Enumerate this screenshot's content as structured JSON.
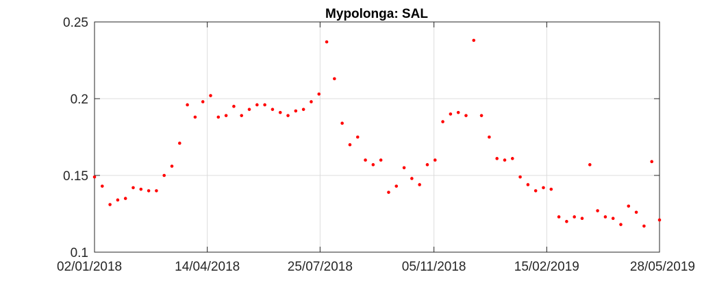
{
  "chart_data": {
    "type": "scatter",
    "title": "Mypolonga: SAL",
    "xlabel": "",
    "ylabel": "",
    "x_axis": "date",
    "xlim": [
      "2018-01-02",
      "2019-05-28"
    ],
    "ylim": [
      0.1,
      0.25
    ],
    "xticks": [
      "2018-01-02",
      "2018-04-14",
      "2018-07-25",
      "2018-11-05",
      "2019-02-15",
      "2019-05-28"
    ],
    "xtick_labels": [
      "02/01/2018",
      "14/04/2018",
      "25/07/2018",
      "05/11/2018",
      "15/02/2019",
      "28/05/2019"
    ],
    "yticks": [
      0.1,
      0.15,
      0.2,
      0.25
    ],
    "ytick_labels": [
      "0.1",
      "0.15",
      "0.2",
      "0.25"
    ],
    "grid": true,
    "marker_color": "#ff0000",
    "series": [
      {
        "points": [
          [
            "2018-01-02",
            0.149
          ],
          [
            "2018-01-09",
            0.143
          ],
          [
            "2018-01-16",
            0.131
          ],
          [
            "2018-01-23",
            0.134
          ],
          [
            "2018-01-30",
            0.135
          ],
          [
            "2018-02-06",
            0.142
          ],
          [
            "2018-02-13",
            0.141
          ],
          [
            "2018-02-20",
            0.14
          ],
          [
            "2018-02-27",
            0.14
          ],
          [
            "2018-03-06",
            0.15
          ],
          [
            "2018-03-13",
            0.156
          ],
          [
            "2018-03-20",
            0.171
          ],
          [
            "2018-03-27",
            0.196
          ],
          [
            "2018-04-03",
            0.188
          ],
          [
            "2018-04-10",
            0.198
          ],
          [
            "2018-04-17",
            0.202
          ],
          [
            "2018-04-24",
            0.188
          ],
          [
            "2018-05-01",
            0.189
          ],
          [
            "2018-05-08",
            0.195
          ],
          [
            "2018-05-15",
            0.189
          ],
          [
            "2018-05-22",
            0.193
          ],
          [
            "2018-05-29",
            0.196
          ],
          [
            "2018-06-05",
            0.196
          ],
          [
            "2018-06-12",
            0.193
          ],
          [
            "2018-06-19",
            0.191
          ],
          [
            "2018-06-26",
            0.189
          ],
          [
            "2018-07-03",
            0.192
          ],
          [
            "2018-07-10",
            0.193
          ],
          [
            "2018-07-17",
            0.198
          ],
          [
            "2018-07-24",
            0.203
          ],
          [
            "2018-07-31",
            0.237
          ],
          [
            "2018-08-07",
            0.213
          ],
          [
            "2018-08-14",
            0.184
          ],
          [
            "2018-08-21",
            0.17
          ],
          [
            "2018-08-28",
            0.175
          ],
          [
            "2018-09-04",
            0.16
          ],
          [
            "2018-09-11",
            0.157
          ],
          [
            "2018-09-18",
            0.16
          ],
          [
            "2018-09-25",
            0.139
          ],
          [
            "2018-10-02",
            0.143
          ],
          [
            "2018-10-09",
            0.155
          ],
          [
            "2018-10-16",
            0.148
          ],
          [
            "2018-10-23",
            0.144
          ],
          [
            "2018-10-30",
            0.157
          ],
          [
            "2018-11-06",
            0.16
          ],
          [
            "2018-11-13",
            0.185
          ],
          [
            "2018-11-20",
            0.19
          ],
          [
            "2018-11-27",
            0.191
          ],
          [
            "2018-12-04",
            0.189
          ],
          [
            "2018-12-11",
            0.238
          ],
          [
            "2018-12-18",
            0.189
          ],
          [
            "2018-12-25",
            0.175
          ],
          [
            "2019-01-01",
            0.161
          ],
          [
            "2019-01-08",
            0.16
          ],
          [
            "2019-01-15",
            0.161
          ],
          [
            "2019-01-22",
            0.149
          ],
          [
            "2019-01-29",
            0.144
          ],
          [
            "2019-02-05",
            0.14
          ],
          [
            "2019-02-12",
            0.142
          ],
          [
            "2019-02-19",
            0.141
          ],
          [
            "2019-02-26",
            0.123
          ],
          [
            "2019-03-05",
            0.12
          ],
          [
            "2019-03-12",
            0.123
          ],
          [
            "2019-03-19",
            0.122
          ],
          [
            "2019-03-26",
            0.157
          ],
          [
            "2019-04-02",
            0.127
          ],
          [
            "2019-04-09",
            0.123
          ],
          [
            "2019-04-16",
            0.122
          ],
          [
            "2019-04-23",
            0.118
          ],
          [
            "2019-04-30",
            0.13
          ],
          [
            "2019-05-07",
            0.126
          ],
          [
            "2019-05-14",
            0.117
          ],
          [
            "2019-05-21",
            0.159
          ],
          [
            "2019-05-28",
            0.121
          ]
        ]
      }
    ]
  }
}
